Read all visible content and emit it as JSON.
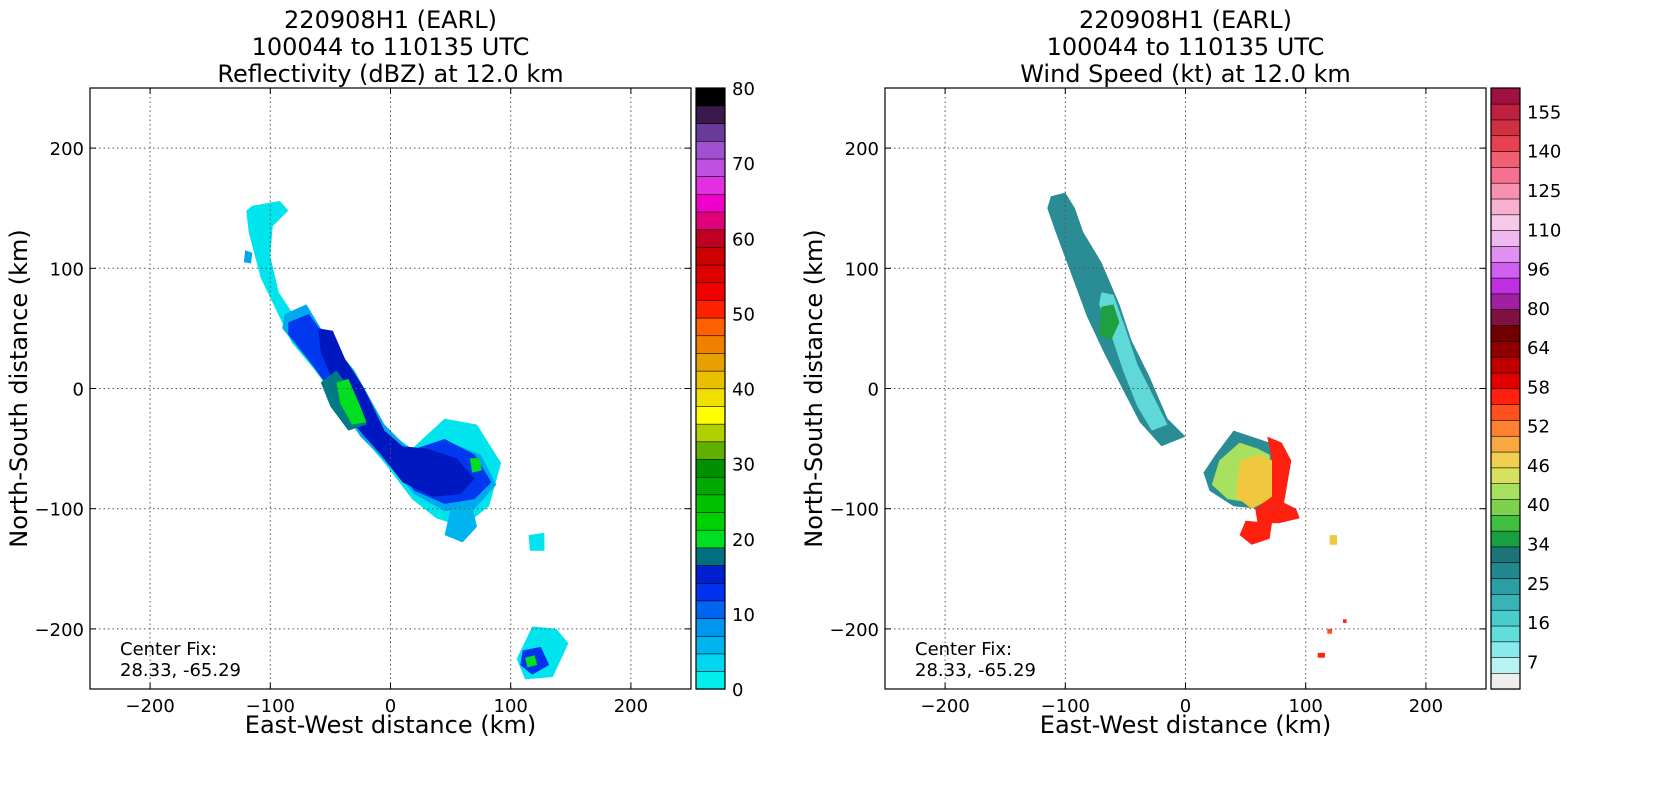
{
  "chart_data": [
    {
      "type": "heatmap",
      "title": [
        "220908H1 (EARL)",
        "100044 to 110135 UTC",
        "Reflectivity (dBZ) at 12.0 km"
      ],
      "xlabel": "East-West distance (km)",
      "ylabel": "North-South distance (km)",
      "xlim": [
        -250,
        250
      ],
      "ylim": [
        -250,
        250
      ],
      "xticks": [
        -200,
        -100,
        0,
        100,
        200
      ],
      "yticks": [
        -200,
        -100,
        0,
        100,
        200
      ],
      "grid": true,
      "annotation": [
        "Center Fix:",
        "28.33, -65.29"
      ],
      "colorbar": {
        "label_values": [
          0,
          10,
          20,
          30,
          40,
          50,
          60,
          70,
          80
        ],
        "colors": [
          "#00eeee",
          "#00d6f0",
          "#00b4f0",
          "#0096f0",
          "#0064f0",
          "#0032f0",
          "#0020d0",
          "#007080",
          "#00e020",
          "#00d000",
          "#00c000",
          "#00a800",
          "#009000",
          "#5fb000",
          "#b0d000",
          "#ffff00",
          "#f0e000",
          "#e8c000",
          "#e8a000",
          "#f08000",
          "#ff6000",
          "#ff2000",
          "#f00000",
          "#dd0000",
          "#cc0000",
          "#c00020",
          "#e0007a",
          "#f000c8",
          "#e030e0",
          "#c050e0",
          "#a050d0",
          "#6a3a9a",
          "#3a1a4a",
          "#000000"
        ]
      },
      "regions": [
        {
          "color": "#00e4ee",
          "path": [
            [
              -115,
              152
            ],
            [
              -92,
              156
            ],
            [
              -85,
              148
            ],
            [
              -98,
              135
            ],
            [
              -100,
              110
            ],
            [
              -93,
              80
            ],
            [
              -70,
              45
            ],
            [
              -42,
              5
            ],
            [
              -8,
              -32
            ],
            [
              18,
              -50
            ],
            [
              45,
              -25
            ],
            [
              72,
              -30
            ],
            [
              92,
              -62
            ],
            [
              82,
              -98
            ],
            [
              60,
              -115
            ],
            [
              38,
              -108
            ],
            [
              18,
              -92
            ],
            [
              -5,
              -62
            ],
            [
              -22,
              -42
            ],
            [
              -40,
              -18
            ],
            [
              -60,
              12
            ],
            [
              -82,
              38
            ],
            [
              -108,
              92
            ],
            [
              -118,
              130
            ],
            [
              -120,
              148
            ]
          ]
        },
        {
          "color": "#00a8f0",
          "path": [
            [
              -88,
              62
            ],
            [
              -70,
              70
            ],
            [
              -55,
              45
            ],
            [
              -30,
              15
            ],
            [
              -5,
              -30
            ],
            [
              20,
              -55
            ],
            [
              50,
              -45
            ],
            [
              75,
              -55
            ],
            [
              88,
              -80
            ],
            [
              70,
              -100
            ],
            [
              45,
              -102
            ],
            [
              20,
              -88
            ],
            [
              -5,
              -60
            ],
            [
              -25,
              -40
            ],
            [
              -48,
              -5
            ],
            [
              -70,
              25
            ],
            [
              -90,
              50
            ]
          ]
        },
        {
          "color": "#0038f0",
          "path": [
            [
              -85,
              55
            ],
            [
              -68,
              62
            ],
            [
              -52,
              40
            ],
            [
              -30,
              10
            ],
            [
              -8,
              -35
            ],
            [
              15,
              -52
            ],
            [
              45,
              -42
            ],
            [
              70,
              -55
            ],
            [
              84,
              -78
            ],
            [
              70,
              -92
            ],
            [
              45,
              -96
            ],
            [
              20,
              -85
            ],
            [
              0,
              -60
            ],
            [
              -22,
              -40
            ],
            [
              -45,
              -8
            ],
            [
              -65,
              20
            ],
            [
              -85,
              45
            ]
          ]
        },
        {
          "color": "#0018c0",
          "path": [
            [
              -60,
              50
            ],
            [
              -48,
              48
            ],
            [
              -38,
              25
            ],
            [
              -22,
              0
            ],
            [
              -5,
              -35
            ],
            [
              10,
              -48
            ],
            [
              30,
              -50
            ],
            [
              55,
              -58
            ],
            [
              70,
              -75
            ],
            [
              58,
              -88
            ],
            [
              35,
              -90
            ],
            [
              10,
              -78
            ],
            [
              -8,
              -55
            ],
            [
              -30,
              -30
            ],
            [
              -45,
              0
            ],
            [
              -58,
              30
            ]
          ]
        },
        {
          "color": "#007a84",
          "path": [
            [
              -58,
              5
            ],
            [
              -45,
              15
            ],
            [
              -30,
              -5
            ],
            [
              -20,
              -30
            ],
            [
              -35,
              -35
            ],
            [
              -50,
              -15
            ]
          ]
        },
        {
          "color": "#00e020",
          "path": [
            [
              -45,
              5
            ],
            [
              -35,
              8
            ],
            [
              -25,
              -15
            ],
            [
              -20,
              -28
            ],
            [
              -32,
              -30
            ],
            [
              -42,
              -12
            ]
          ]
        },
        {
          "color": "#00e020",
          "path": [
            [
              66,
              -58
            ],
            [
              74,
              -58
            ],
            [
              76,
              -68
            ],
            [
              68,
              -70
            ]
          ]
        },
        {
          "color": "#00e4ee",
          "path": [
            [
              118,
              -198
            ],
            [
              138,
              -200
            ],
            [
              148,
              -212
            ],
            [
              135,
              -240
            ],
            [
              112,
              -242
            ],
            [
              105,
              -225
            ]
          ]
        },
        {
          "color": "#0032f0",
          "path": [
            [
              110,
              -218
            ],
            [
              125,
              -215
            ],
            [
              132,
              -230
            ],
            [
              118,
              -238
            ],
            [
              108,
              -230
            ]
          ]
        },
        {
          "color": "#00e020",
          "path": [
            [
              112,
              -224
            ],
            [
              120,
              -222
            ],
            [
              122,
              -230
            ],
            [
              114,
              -232
            ]
          ]
        },
        {
          "color": "#00b4f0",
          "path": [
            [
              50,
              -100
            ],
            [
              68,
              -98
            ],
            [
              72,
              -115
            ],
            [
              60,
              -128
            ],
            [
              45,
              -122
            ]
          ]
        },
        {
          "color": "#00e4ee",
          "path": [
            [
              115,
              -122
            ],
            [
              128,
              -120
            ],
            [
              128,
              -135
            ],
            [
              116,
              -135
            ]
          ]
        },
        {
          "color": "#00a8f0",
          "path": [
            [
              -121,
              115
            ],
            [
              -115,
              113
            ],
            [
              -116,
              104
            ],
            [
              -122,
              105
            ]
          ]
        }
      ]
    },
    {
      "type": "heatmap",
      "title": [
        "220908H1 (EARL)",
        "100044 to 110135 UTC",
        "Wind Speed (kt) at 12.0 km"
      ],
      "xlabel": "East-West distance (km)",
      "ylabel": "North-South distance (km)",
      "xlim": [
        -250,
        250
      ],
      "ylim": [
        -250,
        250
      ],
      "xticks": [
        -200,
        -100,
        0,
        100,
        200
      ],
      "yticks": [
        -200,
        -100,
        0,
        100,
        200
      ],
      "grid": true,
      "annotation": [
        "Center Fix:",
        "28.33, -65.29"
      ],
      "colorbar": {
        "label_values": [
          "7",
          "16",
          "25",
          "34",
          "40",
          "46",
          "52",
          "58",
          "64",
          "80",
          "96",
          "110",
          "125",
          "140",
          "155"
        ],
        "colors": [
          "#eeeeee",
          "#b8f2f2",
          "#88eaea",
          "#60dede",
          "#48cccc",
          "#38b4b8",
          "#2a9ea4",
          "#228890",
          "#1a7478",
          "#18a040",
          "#40c040",
          "#80d050",
          "#a8e060",
          "#d8e060",
          "#f0d050",
          "#f8a840",
          "#ff8030",
          "#ff5020",
          "#ff2010",
          "#e00000",
          "#c00000",
          "#900000",
          "#700000",
          "#801040",
          "#a020a0",
          "#c030e0",
          "#d060f0",
          "#e090f0",
          "#f0b8f0",
          "#f8c8e8",
          "#f8b0d0",
          "#f890b0",
          "#f87090",
          "#f06070",
          "#e84050",
          "#d03040",
          "#c02040",
          "#a01040"
        ]
      },
      "regions": [
        {
          "color": "#2a8c94",
          "path": [
            [
              -112,
              160
            ],
            [
              -100,
              163
            ],
            [
              -92,
              150
            ],
            [
              -85,
              130
            ],
            [
              -70,
              105
            ],
            [
              -55,
              70
            ],
            [
              -45,
              40
            ],
            [
              -30,
              10
            ],
            [
              -15,
              -25
            ],
            [
              0,
              -40
            ],
            [
              -20,
              -48
            ],
            [
              -38,
              -28
            ],
            [
              -50,
              -5
            ],
            [
              -68,
              30
            ],
            [
              -82,
              60
            ],
            [
              -95,
              95
            ],
            [
              -108,
              130
            ],
            [
              -115,
              150
            ]
          ]
        },
        {
          "color": "#60d8d8",
          "path": [
            [
              -70,
              80
            ],
            [
              -60,
              78
            ],
            [
              -50,
              50
            ],
            [
              -40,
              20
            ],
            [
              -25,
              -10
            ],
            [
              -15,
              -30
            ],
            [
              -28,
              -35
            ],
            [
              -40,
              -15
            ],
            [
              -52,
              15
            ],
            [
              -62,
              45
            ],
            [
              -72,
              70
            ]
          ]
        },
        {
          "color": "#1fa040",
          "path": [
            [
              -70,
              68
            ],
            [
              -60,
              70
            ],
            [
              -55,
              55
            ],
            [
              -62,
              40
            ],
            [
              -72,
              45
            ]
          ]
        },
        {
          "color": "#2a8c94",
          "path": [
            [
              25,
              -55
            ],
            [
              40,
              -35
            ],
            [
              55,
              -40
            ],
            [
              70,
              -45
            ],
            [
              85,
              -60
            ],
            [
              78,
              -90
            ],
            [
              60,
              -100
            ],
            [
              40,
              -98
            ],
            [
              20,
              -85
            ],
            [
              15,
              -70
            ]
          ]
        },
        {
          "color": "#a8e060",
          "path": [
            [
              28,
              -60
            ],
            [
              45,
              -45
            ],
            [
              60,
              -50
            ],
            [
              70,
              -55
            ],
            [
              72,
              -80
            ],
            [
              55,
              -95
            ],
            [
              35,
              -92
            ],
            [
              22,
              -80
            ]
          ]
        },
        {
          "color": "#f0c840",
          "path": [
            [
              45,
              -60
            ],
            [
              62,
              -55
            ],
            [
              72,
              -60
            ],
            [
              75,
              -90
            ],
            [
              55,
              -100
            ],
            [
              42,
              -90
            ]
          ]
        },
        {
          "color": "#ff2010",
          "path": [
            [
              68,
              -40
            ],
            [
              80,
              -45
            ],
            [
              88,
              -60
            ],
            [
              82,
              -95
            ],
            [
              92,
              -100
            ],
            [
              95,
              -108
            ],
            [
              78,
              -112
            ],
            [
              60,
              -112
            ],
            [
              58,
              -100
            ],
            [
              72,
              -90
            ],
            [
              72,
              -60
            ]
          ]
        },
        {
          "color": "#ff2010",
          "path": [
            [
              50,
              -110
            ],
            [
              72,
              -112
            ],
            [
              70,
              -125
            ],
            [
              55,
              -130
            ],
            [
              45,
              -122
            ]
          ]
        },
        {
          "color": "#f0c840",
          "path": [
            [
              120,
              -122
            ],
            [
              126,
              -122
            ],
            [
              126,
              -130
            ],
            [
              120,
              -130
            ]
          ]
        },
        {
          "color": "#ff5020",
          "path": [
            [
              118,
              -200
            ],
            [
              122,
              -200
            ],
            [
              122,
              -204
            ],
            [
              118,
              -204
            ]
          ]
        },
        {
          "color": "#ff2010",
          "path": [
            [
              110,
              -220
            ],
            [
              116,
              -220
            ],
            [
              116,
              -224
            ],
            [
              110,
              -224
            ]
          ]
        },
        {
          "color": "#ff2010",
          "path": [
            [
              131,
              -192
            ],
            [
              134,
              -192
            ],
            [
              134,
              -195
            ],
            [
              131,
              -195
            ]
          ]
        }
      ]
    }
  ]
}
